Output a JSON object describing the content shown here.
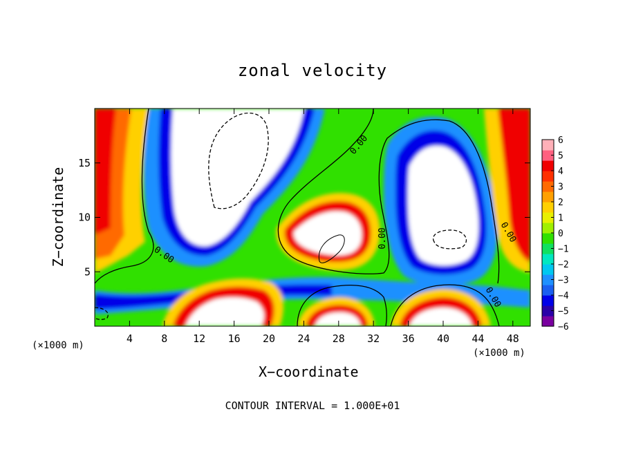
{
  "chart_data": {
    "type": "heatmap",
    "title": "zonal velocity",
    "xlabel": "X−coordinate",
    "ylabel": "Z−coordinate",
    "x_unit_label": "(×1000 m)",
    "footer": "CONTOUR INTERVAL = 1.000E+01",
    "xlim": [
      0,
      50
    ],
    "ylim": [
      0,
      20
    ],
    "x_ticks": [
      4,
      8,
      12,
      16,
      20,
      24,
      28,
      32,
      36,
      40,
      44,
      48
    ],
    "y_ticks": [
      5,
      10,
      15
    ],
    "colorbar": {
      "range": [
        -6,
        6
      ],
      "tick_labels": [
        "6",
        "5",
        "4",
        "3",
        "2",
        "1",
        "0",
        "−1",
        "−2",
        "−3",
        "−4",
        "−5",
        "−6"
      ],
      "colors": [
        "#7a00a0",
        "#2a00a8",
        "#0000e8",
        "#1a5ff0",
        "#1e90ff",
        "#00c8f0",
        "#00e8c0",
        "#10e060",
        "#30e000",
        "#a0f000",
        "#e8f000",
        "#ffd000",
        "#ffa000",
        "#ff6a00",
        "#ff3000",
        "#f00000",
        "#ff6080",
        "#ffb0b8"
      ]
    },
    "contour_labels": [
      "0.00",
      "0.00",
      "0.00",
      "0.00",
      "0.00"
    ],
    "features": [
      {
        "kind": "min",
        "x": 16,
        "z": 14,
        "sign": "negative",
        "note": "strong westward core (below −6)"
      },
      {
        "kind": "min",
        "x": 40,
        "z": 8,
        "sign": "negative"
      },
      {
        "kind": "max",
        "x": 27,
        "z": 8,
        "sign": "positive"
      },
      {
        "kind": "max",
        "x": 1,
        "z": 14,
        "sign": "positive"
      },
      {
        "kind": "max",
        "x": 49,
        "z": 14,
        "sign": "positive"
      },
      {
        "kind": "max",
        "x": 12,
        "z": 1.5,
        "sign": "positive"
      },
      {
        "kind": "max",
        "x": 28,
        "z": 1,
        "sign": "positive"
      },
      {
        "kind": "max",
        "x": 42,
        "z": 2,
        "sign": "positive"
      }
    ]
  }
}
